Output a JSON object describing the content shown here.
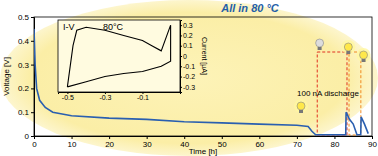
{
  "chart_data": [
    {
      "type": "line",
      "title": "All in 80 °C",
      "x_label": "Time [h]",
      "y_label": "Voltage [V]",
      "x": [
        0,
        0.3,
        0.7,
        1.5,
        3,
        5,
        10,
        20,
        30,
        40,
        50,
        60,
        70,
        73,
        74,
        75,
        83,
        83.1,
        84,
        85,
        86,
        87,
        87.1,
        88,
        89
      ],
      "values": [
        0.45,
        0.3,
        0.2,
        0.15,
        0.12,
        0.1,
        0.085,
        0.075,
        0.07,
        0.06,
        0.055,
        0.05,
        0.045,
        0.04,
        0.02,
        0.005,
        0.005,
        0.1,
        0.07,
        0.05,
        0.005,
        0.005,
        0.08,
        0.05,
        0.01
      ],
      "color": "#2a5fb0",
      "xlim": [
        0,
        90
      ],
      "xticks": [
        0,
        10,
        20,
        30,
        40,
        50,
        60,
        70,
        80,
        90
      ],
      "ylim": [
        0,
        0.5
      ],
      "yticks": [
        0,
        0.1,
        0.2,
        0.3,
        0.4,
        0.5
      ],
      "annotations": [
        "100 nA discharge"
      ]
    },
    {
      "type": "line",
      "title": "I-V",
      "y_label": "Current [μA]",
      "x": [
        -0.5,
        -0.47,
        -0.45,
        -0.4,
        -0.3,
        -0.2,
        -0.1,
        -0.05,
        0,
        0.05,
        0.05,
        0,
        -0.1,
        -0.2,
        -0.3,
        -0.4,
        -0.5
      ],
      "values": [
        -0.3,
        0.1,
        0.25,
        0.28,
        0.25,
        0.2,
        0.15,
        0.1,
        0.05,
        0.3,
        -0.05,
        -0.1,
        -0.15,
        -0.17,
        -0.2,
        -0.25,
        -0.3
      ],
      "color": "#000000",
      "xlim": [
        -0.55,
        0.1
      ],
      "xticks": [
        -0.5,
        -0.3,
        -0.1
      ],
      "ylim": [
        -0.35,
        0.35
      ],
      "yticks": [
        -0.3,
        -0.2,
        -0.1,
        0,
        0.1,
        0.2,
        0.3
      ],
      "annotations": [
        "80°C"
      ]
    }
  ]
}
